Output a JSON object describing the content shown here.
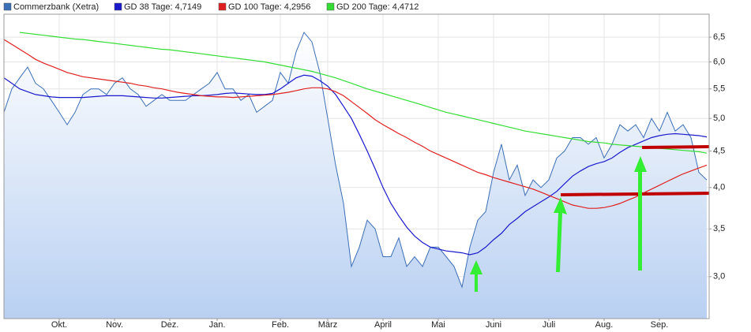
{
  "chart_data": {
    "type": "line",
    "log_scale": true,
    "grid": true,
    "legend_position": "top",
    "categories": [
      null,
      null,
      null,
      null,
      null,
      null,
      null,
      "Okt.",
      null,
      null,
      null,
      null,
      null,
      null,
      "Nov.",
      null,
      null,
      null,
      null,
      null,
      null,
      "Dez.",
      null,
      null,
      null,
      null,
      null,
      "Jan.",
      null,
      null,
      null,
      null,
      null,
      null,
      null,
      "Feb.",
      null,
      null,
      null,
      null,
      null,
      "März",
      null,
      null,
      null,
      null,
      null,
      null,
      "April",
      null,
      null,
      null,
      null,
      null,
      null,
      "Mai",
      null,
      null,
      null,
      null,
      null,
      null,
      "Juni",
      null,
      null,
      null,
      null,
      null,
      null,
      "Juli",
      null,
      null,
      null,
      null,
      null,
      null,
      "Aug.",
      null,
      null,
      null,
      null,
      null,
      null,
      "Sep.",
      null,
      null,
      null,
      null,
      null,
      null
    ],
    "ylim": [
      2.62,
      7.0
    ],
    "yticks": [
      {
        "value": 3.0,
        "label": "3,0"
      },
      {
        "value": 3.5,
        "label": "3,5"
      },
      {
        "value": 4.0,
        "label": "4,0"
      },
      {
        "value": 4.5,
        "label": "4,5"
      },
      {
        "value": 5.0,
        "label": "5,0"
      },
      {
        "value": 5.5,
        "label": "5,5"
      },
      {
        "value": 6.0,
        "label": "6,0"
      },
      {
        "value": 6.5,
        "label": "6,5"
      }
    ],
    "series": [
      {
        "name": "Commerzbank (Xetra)",
        "color": "#3b6fb6",
        "area": true,
        "values": [
          5.1,
          5.5,
          5.7,
          5.9,
          5.6,
          5.5,
          5.3,
          5.1,
          4.9,
          5.1,
          5.4,
          5.5,
          5.5,
          5.4,
          5.6,
          5.7,
          5.5,
          5.4,
          5.2,
          5.3,
          5.4,
          5.3,
          5.3,
          5.3,
          5.4,
          5.5,
          5.6,
          5.8,
          5.5,
          5.5,
          5.3,
          5.4,
          5.1,
          5.2,
          5.3,
          5.8,
          5.6,
          6.2,
          6.6,
          6.4,
          5.8,
          5.0,
          4.3,
          3.8,
          3.1,
          3.3,
          3.6,
          3.5,
          3.2,
          3.2,
          3.4,
          3.1,
          3.2,
          3.1,
          3.3,
          3.3,
          3.2,
          3.1,
          2.9,
          3.3,
          3.6,
          3.7,
          4.2,
          4.6,
          4.1,
          4.3,
          3.9,
          4.1,
          4.0,
          4.1,
          4.4,
          4.5,
          4.7,
          4.7,
          4.6,
          4.7,
          4.4,
          4.6,
          4.9,
          4.8,
          4.9,
          4.7,
          5.0,
          4.8,
          5.1,
          4.8,
          4.9,
          4.7,
          4.2,
          4.1
        ]
      },
      {
        "name": "GD 38 Tage: 4,7149",
        "color": "#1a1acc",
        "values": [
          5.7,
          5.6,
          5.5,
          5.45,
          5.4,
          5.38,
          5.36,
          5.35,
          5.35,
          5.35,
          5.35,
          5.36,
          5.37,
          5.38,
          5.38,
          5.38,
          5.37,
          5.36,
          5.35,
          5.34,
          5.34,
          5.35,
          5.36,
          5.37,
          5.38,
          5.38,
          5.39,
          5.4,
          5.42,
          5.43,
          5.42,
          5.41,
          5.4,
          5.4,
          5.42,
          5.5,
          5.6,
          5.7,
          5.75,
          5.73,
          5.65,
          5.55,
          5.4,
          5.2,
          5.0,
          4.75,
          4.5,
          4.25,
          4.0,
          3.8,
          3.65,
          3.52,
          3.42,
          3.35,
          3.3,
          3.28,
          3.26,
          3.25,
          3.24,
          3.22,
          3.24,
          3.3,
          3.38,
          3.45,
          3.55,
          3.62,
          3.7,
          3.76,
          3.82,
          3.88,
          3.95,
          4.05,
          4.15,
          4.22,
          4.28,
          4.32,
          4.35,
          4.4,
          4.48,
          4.55,
          4.6,
          4.65,
          4.7,
          4.73,
          4.75,
          4.76,
          4.75,
          4.74,
          4.73,
          4.71
        ]
      },
      {
        "name": "GD 100 Tage: 4,2956",
        "color": "#e02020",
        "values": [
          6.45,
          6.35,
          6.25,
          6.15,
          6.05,
          5.98,
          5.92,
          5.86,
          5.8,
          5.76,
          5.72,
          5.7,
          5.68,
          5.66,
          5.64,
          5.62,
          5.6,
          5.57,
          5.55,
          5.52,
          5.5,
          5.47,
          5.44,
          5.42,
          5.4,
          5.38,
          5.37,
          5.36,
          5.36,
          5.35,
          5.36,
          5.37,
          5.38,
          5.39,
          5.4,
          5.42,
          5.44,
          5.47,
          5.5,
          5.52,
          5.52,
          5.5,
          5.45,
          5.38,
          5.28,
          5.18,
          5.08,
          4.98,
          4.9,
          4.83,
          4.76,
          4.7,
          4.63,
          4.57,
          4.5,
          4.45,
          4.4,
          4.35,
          4.3,
          4.25,
          4.2,
          4.17,
          4.13,
          4.1,
          4.07,
          4.04,
          4.01,
          3.98,
          3.94,
          3.9,
          3.86,
          3.82,
          3.78,
          3.76,
          3.74,
          3.74,
          3.75,
          3.77,
          3.8,
          3.84,
          3.88,
          3.93,
          3.98,
          4.03,
          4.08,
          4.13,
          4.18,
          4.22,
          4.26,
          4.3
        ]
      },
      {
        "name": "GD 200 Tage: 4,4712",
        "color": "#33dd33",
        "values": [
          null,
          null,
          6.6,
          6.58,
          6.56,
          6.54,
          6.52,
          6.5,
          6.48,
          6.46,
          6.45,
          6.43,
          6.41,
          6.39,
          6.37,
          6.35,
          6.33,
          6.31,
          6.29,
          6.27,
          6.25,
          6.24,
          6.22,
          6.2,
          6.18,
          6.16,
          6.14,
          6.12,
          6.1,
          6.08,
          6.06,
          6.04,
          6.02,
          6.0,
          5.97,
          5.94,
          5.91,
          5.88,
          5.85,
          5.82,
          5.78,
          5.74,
          5.7,
          5.65,
          5.6,
          5.55,
          5.5,
          5.46,
          5.42,
          5.38,
          5.34,
          5.3,
          5.26,
          5.22,
          5.18,
          5.14,
          5.1,
          5.07,
          5.04,
          5.01,
          4.98,
          4.95,
          4.92,
          4.89,
          4.86,
          4.83,
          4.8,
          4.78,
          4.76,
          4.74,
          4.72,
          4.7,
          4.68,
          4.66,
          4.64,
          4.63,
          4.62,
          4.6,
          4.59,
          4.58,
          4.57,
          4.56,
          4.55,
          4.54,
          4.53,
          4.52,
          4.51,
          4.5,
          4.49,
          4.47
        ]
      }
    ]
  }
}
